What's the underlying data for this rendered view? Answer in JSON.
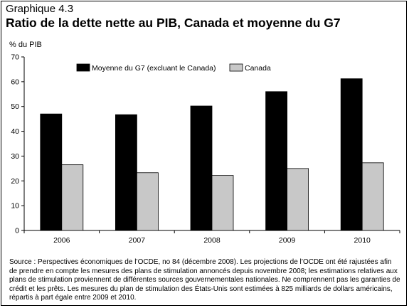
{
  "kicker": "Graphique 4.3",
  "title": "Ratio de la dette nette au PIB, Canada et moyenne du G7",
  "chart_data": {
    "type": "bar",
    "title": "Ratio de la dette nette au PIB, Canada et moyenne du G7",
    "ylabel": "% du PIB",
    "xlabel": "",
    "categories": [
      "2006",
      "2007",
      "2008",
      "2009",
      "2010"
    ],
    "series": [
      {
        "name": "Moyenne du G7 (excluant le Canada)",
        "color": "#000000",
        "values": [
          47,
          46.7,
          50.2,
          56,
          61.2
        ]
      },
      {
        "name": "Canada",
        "color": "#c8c8c8",
        "values": [
          26.5,
          23.3,
          22.2,
          25,
          27.3
        ]
      }
    ],
    "ylim": [
      0,
      70
    ],
    "yticks": [
      0,
      10,
      20,
      30,
      40,
      50,
      60,
      70
    ],
    "grid": false,
    "legend": "top"
  },
  "source": "Source : Perspectives économiques de l’OCDE, no 84 (décembre 2008). Les projections de l’OCDE ont été rajustées afin de prendre en compte les mesures des plans de stimulation annoncés depuis novembre 2008; les estimations relatives aux plans de stimulation proviennent de différentes sources gouvernementales nationales. Ne comprennent pas les garanties de crédit et les prêts. Les mesures du plan de stimulation des États-Unis sont estimées à 825 milliards de dollars américains, répartis à part égale entre 2009 et 2010."
}
